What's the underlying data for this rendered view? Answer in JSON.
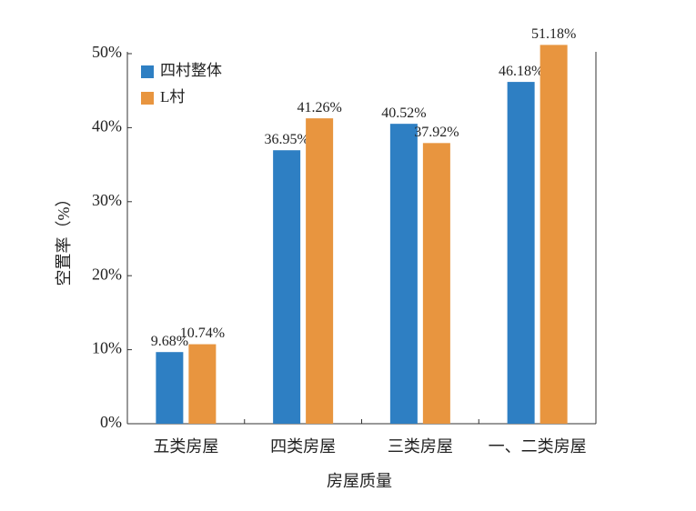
{
  "chart_data": {
    "type": "bar",
    "categories": [
      "五类房屋",
      "四类房屋",
      "三类房屋",
      "一、二类房屋"
    ],
    "series": [
      {
        "name": "四村整体",
        "color": "#2e7fc3",
        "values": [
          9.68,
          36.95,
          40.52,
          46.18
        ],
        "value_labels": [
          "9.68%",
          "36.95%",
          "40.52%",
          "46.18%"
        ]
      },
      {
        "name": "L村",
        "color": "#e8953f",
        "values": [
          10.74,
          41.26,
          37.92,
          51.18
        ],
        "value_labels": [
          "10.74%",
          "41.26%",
          "37.92%",
          "51.18%"
        ]
      }
    ],
    "x_label": "房屋质量",
    "y_label": "空置率（%）",
    "ylim": [
      0,
      50
    ],
    "yticks": [
      {
        "value": 0,
        "label": "0%"
      },
      {
        "value": 10,
        "label": "10%"
      },
      {
        "value": 20,
        "label": "20%"
      },
      {
        "value": 30,
        "label": "30%"
      },
      {
        "value": 40,
        "label": "40%"
      },
      {
        "value": 50,
        "label": "50%"
      }
    ],
    "legend": "upper-left",
    "grid": false
  }
}
